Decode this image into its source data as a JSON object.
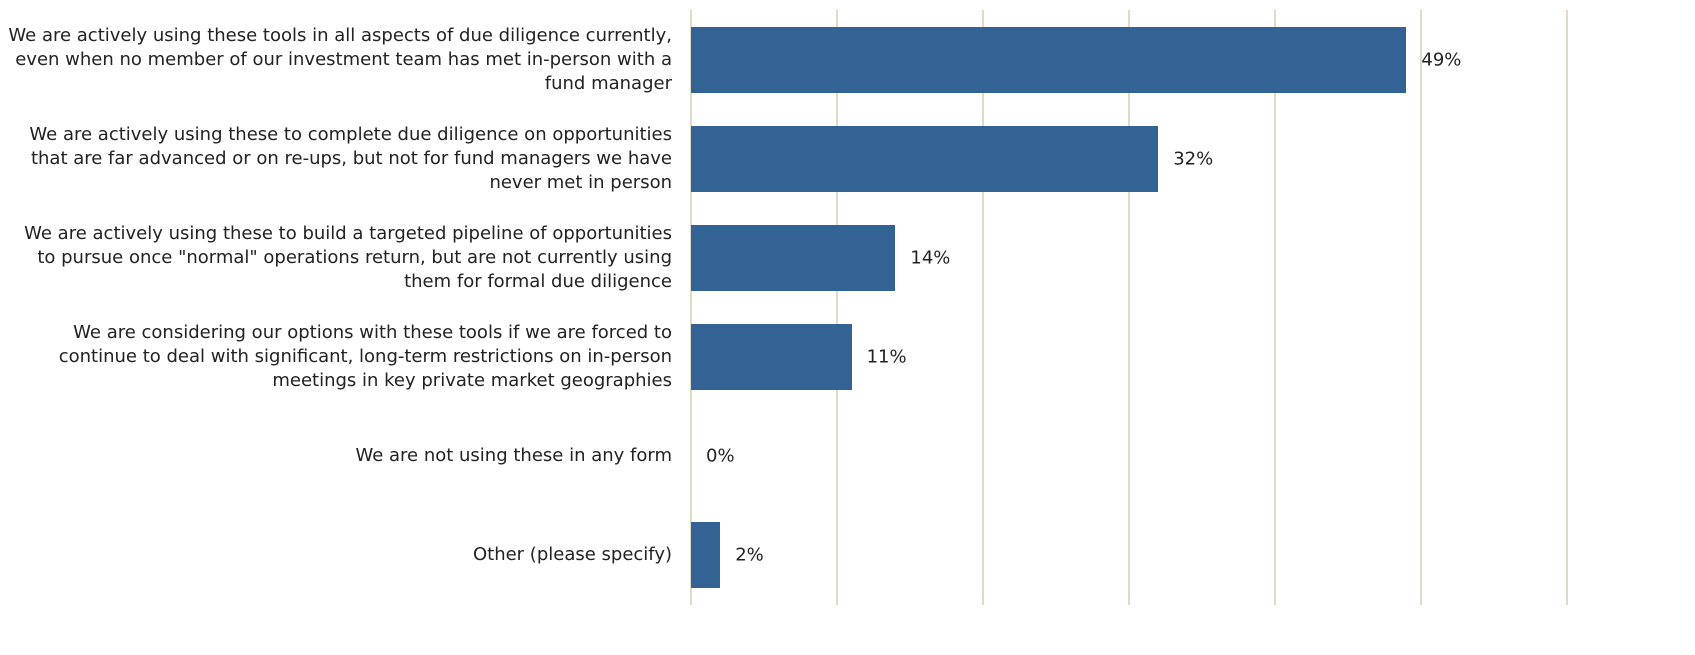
{
  "chart_data": {
    "type": "bar",
    "orientation": "horizontal",
    "categories": [
      "We are actively using these tools in all aspects of due diligence currently, even when no member of our investment team has met in-person with a fund manager",
      "We are actively using these to complete due diligence on opportunities that are far advanced or on re-ups, but not for fund managers we have never met in person",
      "We are actively using these to build a targeted pipeline of opportunities to pursue once \"normal\" operations return, but are not currently using them for formal due diligence",
      "We are considering our options with these tools if we are forced to continue to deal with significant, long-term restrictions on in-person meetings in key private market geographies",
      "We are not using these in any form",
      "Other (please specify)"
    ],
    "values": [
      49,
      32,
      14,
      11,
      0,
      2
    ],
    "value_labels": [
      "49%",
      "32%",
      "14%",
      "11%",
      "0%",
      "2%"
    ],
    "color": "#336394",
    "xlim": [
      0,
      60
    ],
    "xticks": [
      0,
      10,
      20,
      30,
      40,
      50,
      60
    ],
    "grid": true
  }
}
